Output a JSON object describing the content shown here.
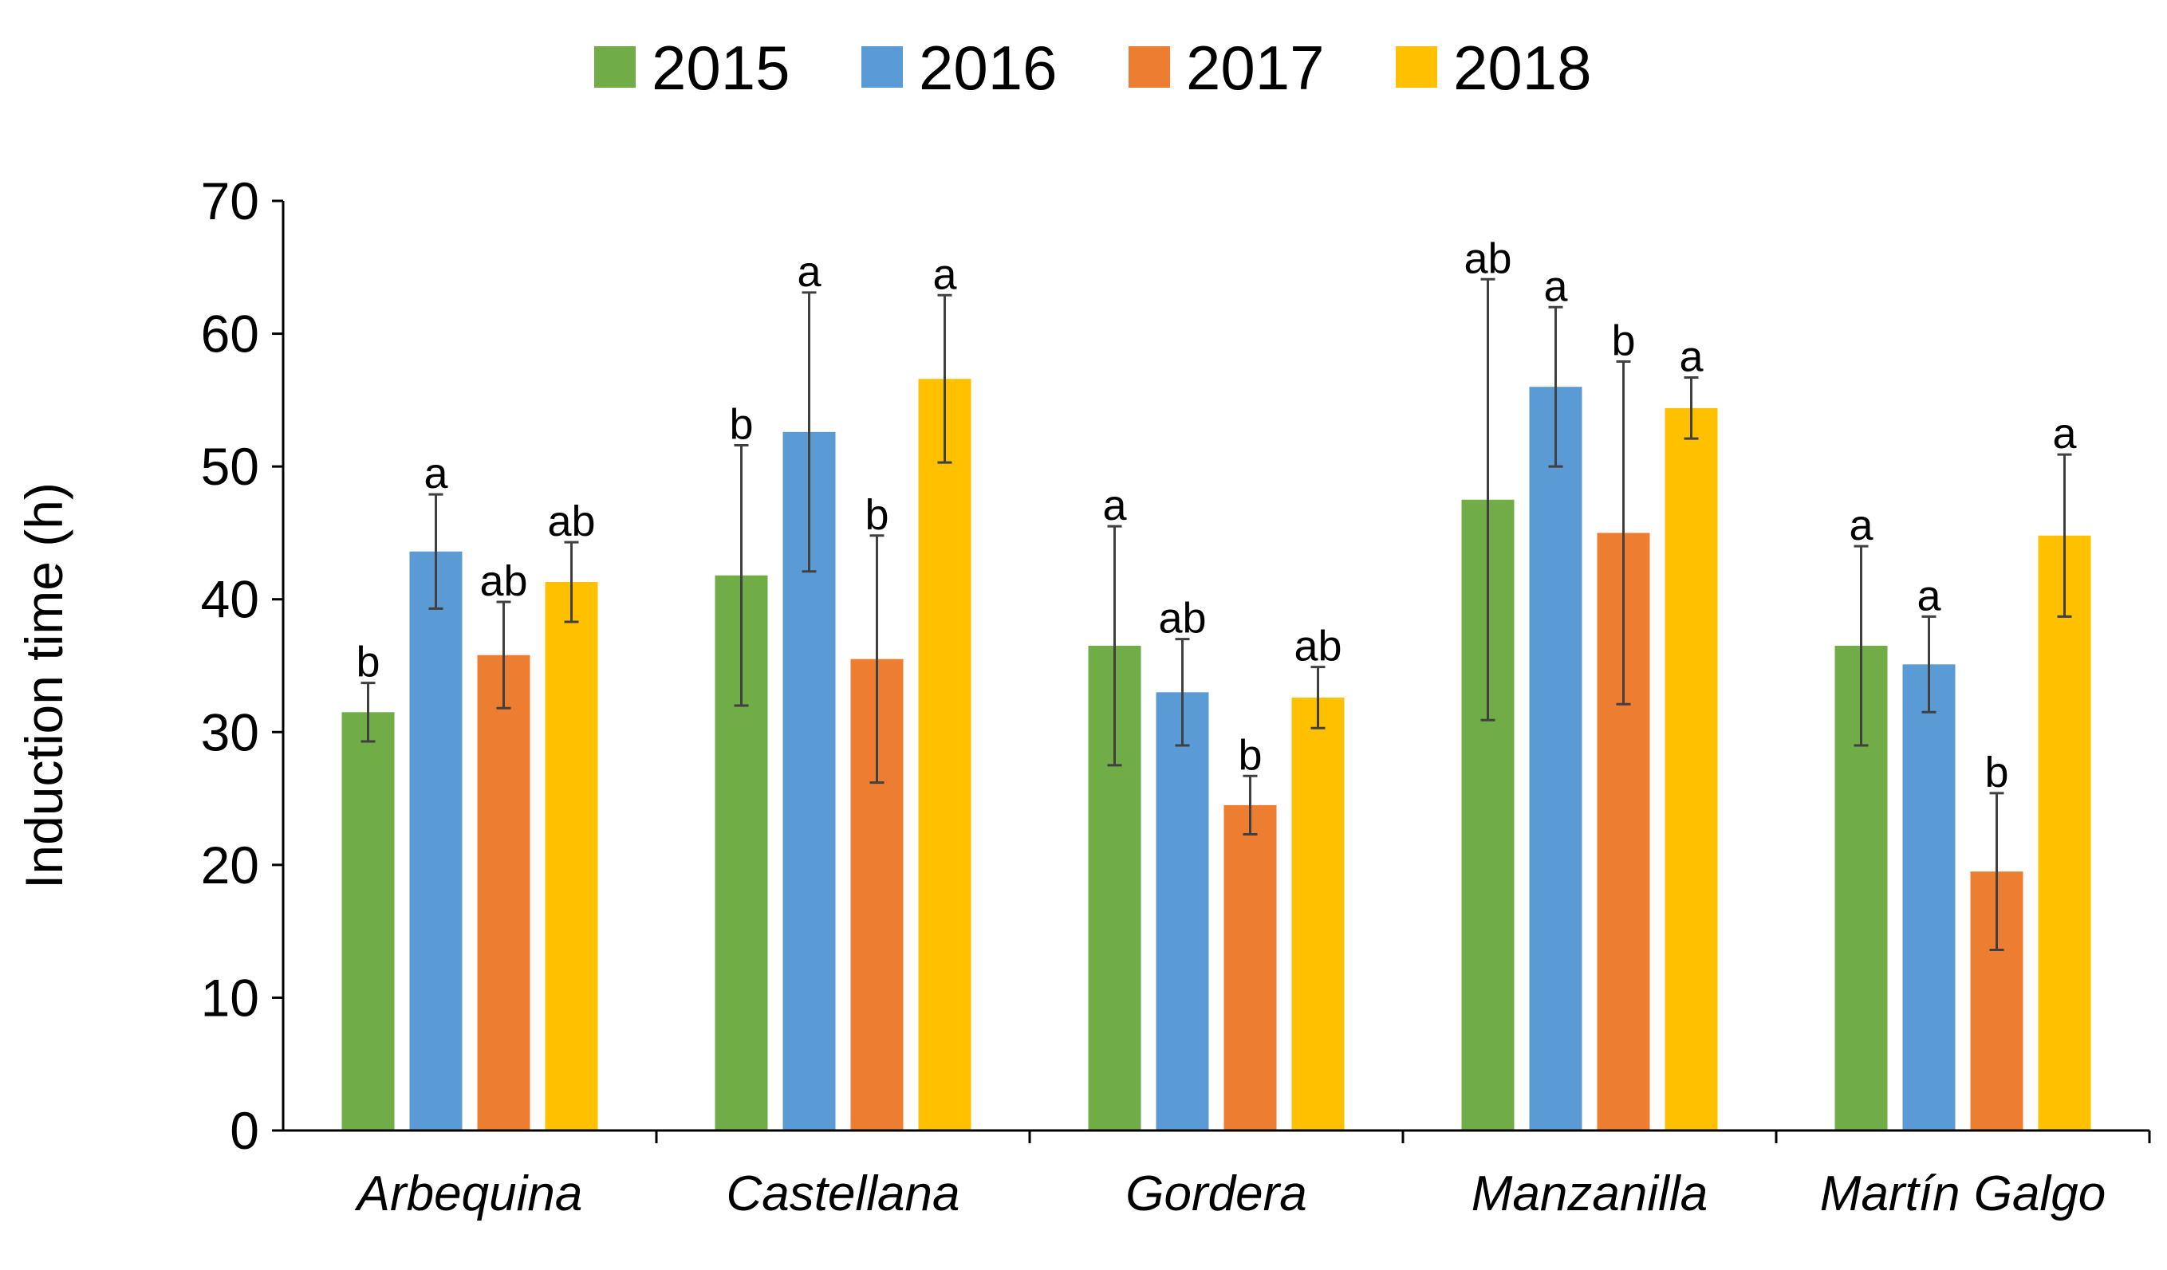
{
  "chart_data": {
    "type": "bar",
    "title": "",
    "xlabel": "",
    "ylabel": "Induction time (h)",
    "ylim": [
      0,
      70
    ],
    "yticks": [
      0,
      10,
      20,
      30,
      40,
      50,
      60,
      70
    ],
    "grid": false,
    "legend_position": "top-center",
    "categories": [
      "Arbequina",
      "Castellana",
      "Gordera",
      "Manzanilla",
      "Martín Galgo"
    ],
    "series": [
      {
        "name": "2015",
        "color": "#70AD47",
        "values": [
          31.5,
          41.8,
          36.5,
          47.5,
          36.5
        ],
        "errors": [
          2.2,
          9.8,
          9.0,
          16.6,
          7.5
        ],
        "letters": [
          "b",
          "b",
          "a",
          "ab",
          "a"
        ]
      },
      {
        "name": "2016",
        "color": "#5B9BD5",
        "values": [
          43.6,
          52.6,
          33.0,
          56.0,
          35.1
        ],
        "errors": [
          4.3,
          10.5,
          4.0,
          6.0,
          3.6
        ],
        "letters": [
          "a",
          "a",
          "ab",
          "a",
          "a"
        ]
      },
      {
        "name": "2017",
        "color": "#ED7D31",
        "values": [
          35.8,
          35.5,
          24.5,
          45.0,
          19.5
        ],
        "errors": [
          4.0,
          9.3,
          2.2,
          12.9,
          5.9
        ],
        "letters": [
          "ab",
          "b",
          "b",
          "b",
          "b"
        ]
      },
      {
        "name": "2018",
        "color": "#FFC000",
        "values": [
          41.3,
          56.6,
          32.6,
          54.4,
          44.8
        ],
        "errors": [
          3.0,
          6.3,
          2.3,
          2.3,
          6.1
        ],
        "letters": [
          "ab",
          "a",
          "ab",
          "a",
          "a"
        ]
      }
    ]
  }
}
